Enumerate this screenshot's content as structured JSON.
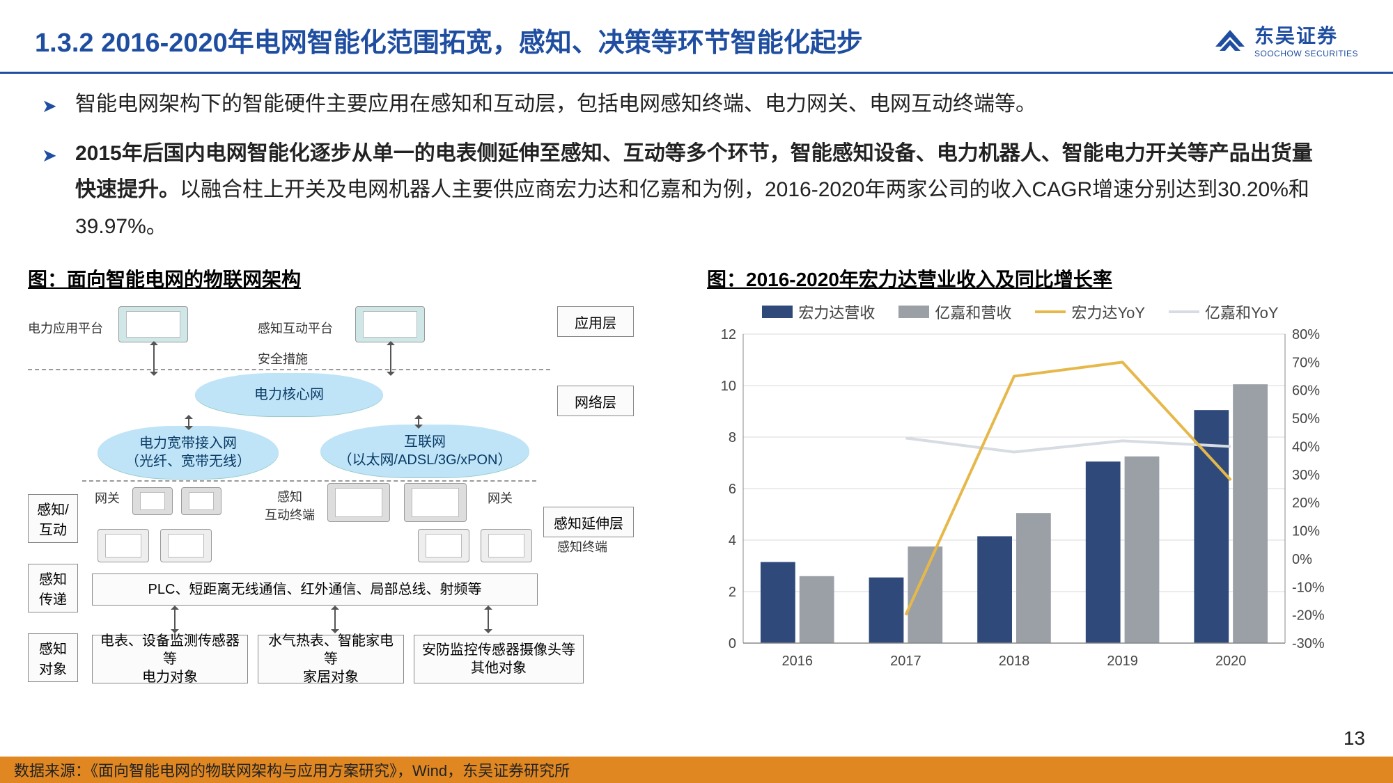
{
  "header": {
    "title": "1.3.2  2016-2020年电网智能化范围拓宽，感知、决策等环节智能化起步",
    "logo_cn": "东吴证券",
    "logo_en": "SOOCHOW SECURITIES",
    "logo_color": "#1f4ea1"
  },
  "bullets": [
    {
      "bold": "",
      "plain": "智能电网架构下的智能硬件主要应用在感知和互动层，包括电网感知终端、电力网关、电网互动终端等。"
    },
    {
      "bold": "2015年后国内电网智能化逐步从单一的电表侧延伸至感知、互动等多个环节，智能感知设备、电力机器人、智能电力开关等产品出货量快速提升。",
      "plain": "以融合柱上开关及电网机器人主要供应商宏力达和亿嘉和为例，2016-2020年两家公司的收入CAGR增速分别达到30.20%和39.97%。"
    }
  ],
  "left_fig": {
    "title": "图：面向智能电网的物联网架构",
    "layers_right": [
      "应用层",
      "网络层",
      "感知延伸层"
    ],
    "layers_left": [
      "感知/\n互动",
      "感知\n传递",
      "感知\n对象"
    ],
    "top_left": "电力应用平台",
    "top_right": "感知互动平台",
    "security": "安全措施",
    "core_cloud": "电力核心网",
    "left_cloud": "电力宽带接入网\n（光纤、宽带无线）",
    "right_cloud": "互联网\n（以太网/ADSL/3G/xPON）",
    "gateway": "网关",
    "interaction_terminal": "互动终端",
    "perception_terminal": "感知终端",
    "comm_row": "PLC、短距离无线通信、红外通信、局部总线、射频等",
    "bottom_boxes": [
      "电表、设备监测传感器等\n电力对象",
      "水气热表、智能家电等\n家居对象",
      "安防监控传感器摄像头等\n其他对象"
    ]
  },
  "right_fig": {
    "title": "图：2016-2020年宏力达营业收入及同比增长率",
    "legend": [
      "宏力达营收",
      "亿嘉和营收",
      "宏力达YoY",
      "亿嘉和YoY"
    ],
    "categories": [
      "2016",
      "2017",
      "2018",
      "2019",
      "2020"
    ],
    "series_bar1": [
      3.15,
      2.55,
      4.15,
      7.05,
      9.05
    ],
    "series_bar2": [
      2.6,
      3.75,
      5.05,
      7.25,
      10.05
    ],
    "series_line1": [
      null,
      -20,
      65,
      70,
      28
    ],
    "series_line2": [
      null,
      43,
      38,
      42,
      40
    ],
    "y_left": {
      "min": 0,
      "max": 12,
      "step": 2
    },
    "y_right": {
      "min": -30,
      "max": 80,
      "step": 10
    },
    "colors": {
      "bar1": "#2f4a7a",
      "bar2": "#9aa0a6",
      "line1": "#e6b84a",
      "line2": "#d6dce2",
      "grid": "#d9d9d9",
      "text": "#444"
    },
    "bar_width": 0.32
  },
  "footer": "数据来源：《面向智能电网的物联网架构与应用方案研究》，Wind，东吴证券研究所",
  "page": "13"
}
